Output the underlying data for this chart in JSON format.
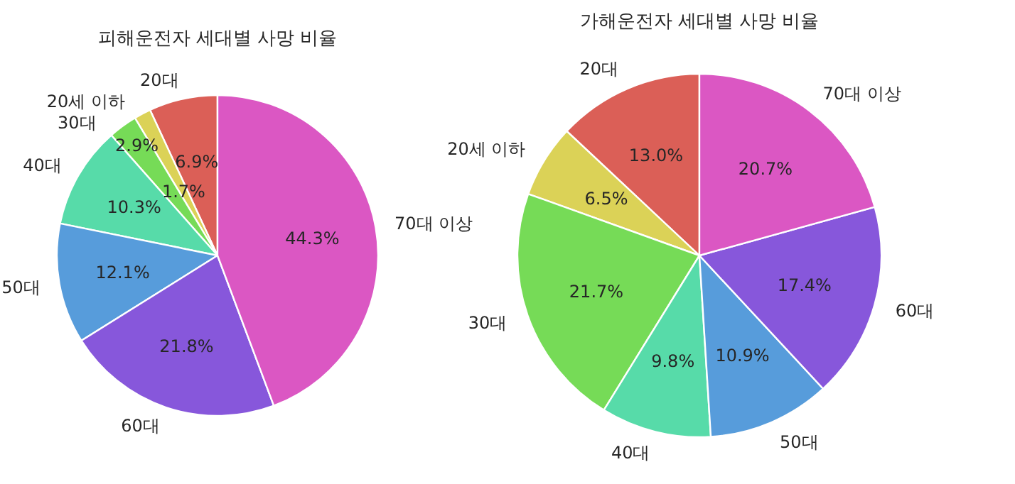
{
  "chart_data": [
    {
      "type": "pie",
      "title": "피해운전자 세대별 사망 비율",
      "categories": [
        "20대",
        "20세 이하",
        "30대",
        "40대",
        "50대",
        "60대",
        "70대 이상"
      ],
      "values": [
        6.9,
        1.7,
        2.9,
        10.3,
        12.1,
        21.8,
        44.3
      ],
      "value_labels": [
        "6.9%",
        "1.7%",
        "2.9%",
        "10.3%",
        "12.1%",
        "21.8%",
        "44.3%"
      ],
      "colors": [
        "#db5f57",
        "#dbd257",
        "#76db57",
        "#57dba9",
        "#579cdb",
        "#8757db",
        "#db57c3"
      ]
    },
    {
      "type": "pie",
      "title": "가해운전자 세대별 사망 비율",
      "categories": [
        "20대",
        "20세 이하",
        "30대",
        "40대",
        "50대",
        "60대",
        "70대 이상"
      ],
      "values": [
        13.0,
        6.5,
        21.7,
        9.8,
        10.9,
        17.4,
        20.7
      ],
      "value_labels": [
        "13.0%",
        "6.5%",
        "21.7%",
        "9.8%",
        "10.9%",
        "17.4%",
        "20.7%"
      ],
      "colors": [
        "#db5f57",
        "#dbd257",
        "#76db57",
        "#57dba9",
        "#579cdb",
        "#8757db",
        "#db57c3"
      ]
    }
  ]
}
